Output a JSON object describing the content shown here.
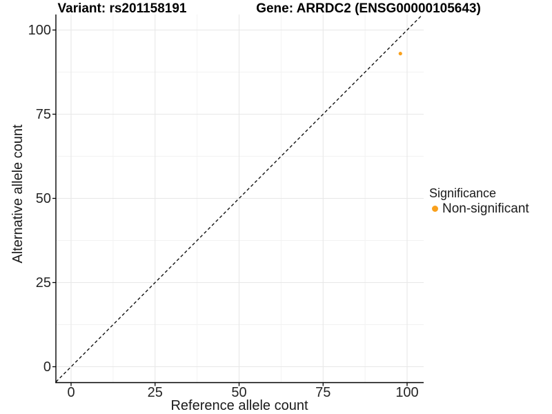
{
  "figure": {
    "title_left": "Variant: rs201158191",
    "title_right": "Gene: ARRDC2 (ENSG00000105643)"
  },
  "legend": {
    "title": "Significance",
    "items": [
      {
        "label": "Non-significant",
        "color": "#F9A01C"
      }
    ]
  },
  "colors": {
    "point": "#F9A01C",
    "grid_major": "#E7E7E7",
    "grid_minor": "#F2F2F2",
    "axis_line": "#000000",
    "reference_line": "#111111"
  },
  "chart_data": {
    "type": "scatter",
    "title": "Variant: rs201158191   Gene: ARRDC2 (ENSG00000105643)",
    "xlabel": "Reference allele count",
    "ylabel": "Alternative allele count",
    "xlim": [
      -4.5,
      104.5
    ],
    "ylim": [
      -4.5,
      104.5
    ],
    "x_ticks": [
      0,
      25,
      50,
      75,
      100
    ],
    "y_ticks": [
      0,
      25,
      50,
      75,
      100
    ],
    "grid": "major+minor",
    "legend_position": "right",
    "series": [
      {
        "name": "Non-significant",
        "color": "#F9A01C",
        "points": [
          {
            "x": 98,
            "y": 93
          }
        ]
      }
    ],
    "reference_line": {
      "type": "identity y=x",
      "style": "dashed",
      "color": "#111111",
      "from": [
        -4.5,
        -4.5
      ],
      "to": [
        104.5,
        104.5
      ]
    }
  }
}
